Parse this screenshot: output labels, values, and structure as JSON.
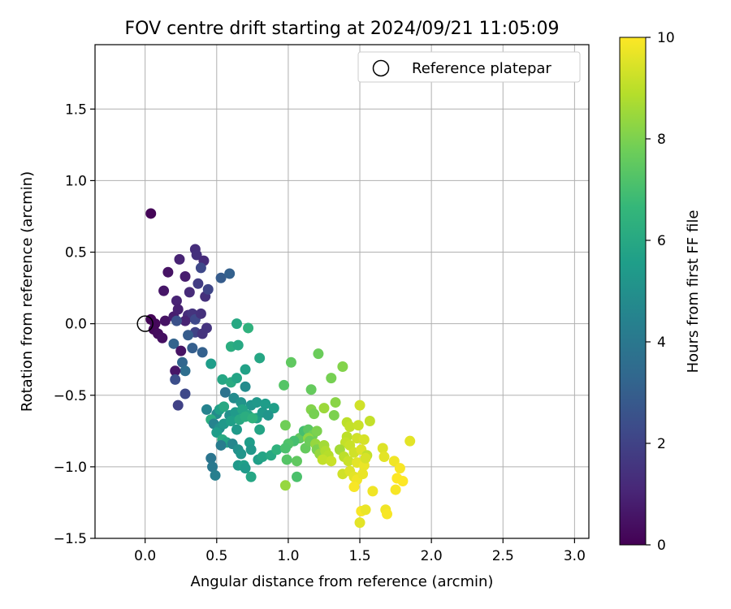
{
  "chart_data": {
    "type": "scatter",
    "title": "FOV centre drift starting at 2024/09/21 11:05:09",
    "xlabel": "Angular distance from reference (arcmin)",
    "ylabel": "Rotation from reference (arcmin)",
    "xlim": [
      -0.35,
      3.1
    ],
    "ylim": [
      -1.5,
      1.95
    ],
    "xticks": [
      0.0,
      0.5,
      1.0,
      1.5,
      2.0,
      2.5,
      3.0
    ],
    "xtick_labels": [
      "0.0",
      "0.5",
      "1.0",
      "1.5",
      "2.0",
      "2.5",
      "3.0"
    ],
    "yticks": [
      -1.5,
      -1.0,
      -0.5,
      0.0,
      0.5,
      1.0,
      1.5
    ],
    "ytick_labels": [
      "−1.5",
      "−1.0",
      "−0.5",
      "0.0",
      "0.5",
      "1.0",
      "1.5"
    ],
    "grid": true,
    "legend": {
      "position": "top-right",
      "label": "Reference platepar"
    },
    "reference_point": {
      "x": 0.0,
      "y": 0.0,
      "marker": "open-circle"
    },
    "colorbar": {
      "label": "Hours from first FF file",
      "colormap": "viridis",
      "range": [
        0,
        10
      ],
      "ticks": [
        0,
        2,
        4,
        6,
        8,
        10
      ],
      "tick_labels": [
        "0",
        "2",
        "4",
        "6",
        "8",
        "10"
      ],
      "colors": [
        "#440154",
        "#482878",
        "#3e4989",
        "#31688e",
        "#26828e",
        "#1f9e89",
        "#35b779",
        "#6ece58",
        "#b5de2b",
        "#fde725"
      ]
    },
    "points": [
      {
        "x": 0.04,
        "y": 0.77,
        "t": 0.1
      },
      {
        "x": 0.04,
        "y": 0.03,
        "t": 0.1
      },
      {
        "x": 0.06,
        "y": -0.04,
        "t": 0.2
      },
      {
        "x": 0.09,
        "y": -0.07,
        "t": 0.3
      },
      {
        "x": 0.12,
        "y": -0.1,
        "t": 0.4
      },
      {
        "x": 0.07,
        "y": 0.0,
        "t": 0.2
      },
      {
        "x": 0.14,
        "y": 0.02,
        "t": 0.5
      },
      {
        "x": 0.16,
        "y": 0.36,
        "t": 0.5
      },
      {
        "x": 0.13,
        "y": 0.23,
        "t": 0.6
      },
      {
        "x": 0.2,
        "y": 0.05,
        "t": 0.8
      },
      {
        "x": 0.22,
        "y": 0.16,
        "t": 1.0
      },
      {
        "x": 0.23,
        "y": 0.1,
        "t": 0.9
      },
      {
        "x": 0.24,
        "y": 0.45,
        "t": 1.0
      },
      {
        "x": 0.28,
        "y": 0.33,
        "t": 0.8
      },
      {
        "x": 0.31,
        "y": 0.22,
        "t": 1.2
      },
      {
        "x": 0.3,
        "y": 0.06,
        "t": 1.3
      },
      {
        "x": 0.28,
        "y": 0.02,
        "t": 1.0
      },
      {
        "x": 0.35,
        "y": 0.52,
        "t": 1.3
      },
      {
        "x": 0.36,
        "y": 0.48,
        "t": 1.4
      },
      {
        "x": 0.41,
        "y": 0.44,
        "t": 1.2
      },
      {
        "x": 0.39,
        "y": 0.39,
        "t": 2.2
      },
      {
        "x": 0.37,
        "y": 0.28,
        "t": 1.8
      },
      {
        "x": 0.42,
        "y": 0.19,
        "t": 1.4
      },
      {
        "x": 0.44,
        "y": 0.24,
        "t": 2.1
      },
      {
        "x": 0.33,
        "y": 0.07,
        "t": 1.5
      },
      {
        "x": 0.35,
        "y": 0.03,
        "t": 2.2
      },
      {
        "x": 0.39,
        "y": 0.07,
        "t": 1.4
      },
      {
        "x": 0.43,
        "y": -0.03,
        "t": 1.5
      },
      {
        "x": 0.35,
        "y": -0.06,
        "t": 2.0
      },
      {
        "x": 0.4,
        "y": -0.07,
        "t": 1.5
      },
      {
        "x": 0.3,
        "y": -0.08,
        "t": 2.9
      },
      {
        "x": 0.2,
        "y": -0.14,
        "t": 3.2
      },
      {
        "x": 0.25,
        "y": -0.19,
        "t": 0.5
      },
      {
        "x": 0.22,
        "y": 0.02,
        "t": 2.5
      },
      {
        "x": 0.33,
        "y": -0.17,
        "t": 3.0
      },
      {
        "x": 0.4,
        "y": -0.2,
        "t": 3.1
      },
      {
        "x": 0.26,
        "y": -0.27,
        "t": 3.3
      },
      {
        "x": 0.28,
        "y": -0.33,
        "t": 3.6
      },
      {
        "x": 0.21,
        "y": -0.33,
        "t": 0.6
      },
      {
        "x": 0.21,
        "y": -0.39,
        "t": 2.4
      },
      {
        "x": 0.28,
        "y": -0.49,
        "t": 2.2
      },
      {
        "x": 0.23,
        "y": -0.57,
        "t": 2.0
      },
      {
        "x": 0.53,
        "y": 0.32,
        "t": 2.9
      },
      {
        "x": 0.59,
        "y": 0.35,
        "t": 3.1
      },
      {
        "x": 0.46,
        "y": -0.28,
        "t": 5.5
      },
      {
        "x": 0.64,
        "y": 0.0,
        "t": 6.0
      },
      {
        "x": 0.72,
        "y": -0.03,
        "t": 6.4
      },
      {
        "x": 0.6,
        "y": -0.16,
        "t": 6.2
      },
      {
        "x": 0.65,
        "y": -0.15,
        "t": 6.0
      },
      {
        "x": 0.8,
        "y": -0.24,
        "t": 5.9
      },
      {
        "x": 0.7,
        "y": -0.32,
        "t": 5.7
      },
      {
        "x": 0.54,
        "y": -0.39,
        "t": 5.9
      },
      {
        "x": 0.6,
        "y": -0.41,
        "t": 6.1
      },
      {
        "x": 0.64,
        "y": -0.38,
        "t": 5.8
      },
      {
        "x": 0.56,
        "y": -0.48,
        "t": 3.8
      },
      {
        "x": 0.62,
        "y": -0.52,
        "t": 4.8
      },
      {
        "x": 0.7,
        "y": -0.44,
        "t": 4.8
      },
      {
        "x": 0.67,
        "y": -0.55,
        "t": 5.1
      },
      {
        "x": 0.74,
        "y": -0.57,
        "t": 5.2
      },
      {
        "x": 0.78,
        "y": -0.55,
        "t": 5.3
      },
      {
        "x": 0.84,
        "y": -0.56,
        "t": 5.5
      },
      {
        "x": 0.9,
        "y": -0.59,
        "t": 5.6
      },
      {
        "x": 0.43,
        "y": -0.6,
        "t": 4.5
      },
      {
        "x": 0.5,
        "y": -0.63,
        "t": 4.8
      },
      {
        "x": 0.52,
        "y": -0.6,
        "t": 5.6
      },
      {
        "x": 0.55,
        "y": -0.58,
        "t": 6.0
      },
      {
        "x": 0.59,
        "y": -0.64,
        "t": 5.0
      },
      {
        "x": 0.63,
        "y": -0.62,
        "t": 5.4
      },
      {
        "x": 0.68,
        "y": -0.6,
        "t": 5.8
      },
      {
        "x": 0.72,
        "y": -0.64,
        "t": 5.9
      },
      {
        "x": 0.78,
        "y": -0.66,
        "t": 5.7
      },
      {
        "x": 0.82,
        "y": -0.62,
        "t": 5.4
      },
      {
        "x": 0.86,
        "y": -0.64,
        "t": 5.2
      },
      {
        "x": 0.46,
        "y": -0.67,
        "t": 6.2
      },
      {
        "x": 0.48,
        "y": -0.7,
        "t": 4.5
      },
      {
        "x": 0.52,
        "y": -0.73,
        "t": 5.0
      },
      {
        "x": 0.55,
        "y": -0.7,
        "t": 5.3
      },
      {
        "x": 0.6,
        "y": -0.68,
        "t": 5.6
      },
      {
        "x": 0.66,
        "y": -0.67,
        "t": 6.0
      },
      {
        "x": 0.7,
        "y": -0.65,
        "t": 6.2
      },
      {
        "x": 0.75,
        "y": -0.66,
        "t": 6.4
      },
      {
        "x": 0.8,
        "y": -0.74,
        "t": 5.8
      },
      {
        "x": 0.64,
        "y": -0.74,
        "t": 5.4
      },
      {
        "x": 0.5,
        "y": -0.76,
        "t": 5.5
      },
      {
        "x": 0.54,
        "y": -0.81,
        "t": 6.1
      },
      {
        "x": 0.57,
        "y": -0.83,
        "t": 5.8
      },
      {
        "x": 0.53,
        "y": -0.85,
        "t": 4.2
      },
      {
        "x": 0.61,
        "y": -0.84,
        "t": 4.6
      },
      {
        "x": 0.65,
        "y": -0.88,
        "t": 5.0
      },
      {
        "x": 0.67,
        "y": -0.91,
        "t": 5.2
      },
      {
        "x": 0.73,
        "y": -0.83,
        "t": 5.5
      },
      {
        "x": 0.74,
        "y": -0.88,
        "t": 5.3
      },
      {
        "x": 0.79,
        "y": -0.95,
        "t": 5.6
      },
      {
        "x": 0.82,
        "y": -0.93,
        "t": 5.8
      },
      {
        "x": 0.46,
        "y": -0.94,
        "t": 3.9
      },
      {
        "x": 0.47,
        "y": -1.0,
        "t": 4.0
      },
      {
        "x": 0.49,
        "y": -1.06,
        "t": 4.3
      },
      {
        "x": 0.65,
        "y": -0.99,
        "t": 5.3
      },
      {
        "x": 0.69,
        "y": -0.99,
        "t": 5.6
      },
      {
        "x": 0.7,
        "y": -1.01,
        "t": 5.4
      },
      {
        "x": 0.74,
        "y": -1.07,
        "t": 5.9
      },
      {
        "x": 0.88,
        "y": -0.92,
        "t": 6.0
      },
      {
        "x": 0.92,
        "y": -0.88,
        "t": 6.4
      },
      {
        "x": 0.97,
        "y": -0.43,
        "t": 7.3
      },
      {
        "x": 1.02,
        "y": -0.27,
        "t": 7.5
      },
      {
        "x": 1.21,
        "y": -0.21,
        "t": 7.7
      },
      {
        "x": 1.3,
        "y": -0.38,
        "t": 7.9
      },
      {
        "x": 1.38,
        "y": -0.3,
        "t": 8.1
      },
      {
        "x": 1.16,
        "y": -0.46,
        "t": 7.6
      },
      {
        "x": 1.33,
        "y": -0.55,
        "t": 8.2
      },
      {
        "x": 1.16,
        "y": -0.6,
        "t": 8.1
      },
      {
        "x": 1.18,
        "y": -0.63,
        "t": 7.9
      },
      {
        "x": 1.25,
        "y": -0.59,
        "t": 8.5
      },
      {
        "x": 1.32,
        "y": -0.64,
        "t": 8.0
      },
      {
        "x": 0.98,
        "y": -0.71,
        "t": 7.8
      },
      {
        "x": 1.08,
        "y": -0.8,
        "t": 7.5
      },
      {
        "x": 1.11,
        "y": -0.75,
        "t": 7.0
      },
      {
        "x": 1.14,
        "y": -0.74,
        "t": 7.4
      },
      {
        "x": 1.17,
        "y": -0.78,
        "t": 7.8
      },
      {
        "x": 1.2,
        "y": -0.75,
        "t": 8.0
      },
      {
        "x": 1.14,
        "y": -0.8,
        "t": 8.3
      },
      {
        "x": 1.04,
        "y": -0.82,
        "t": 7.0
      },
      {
        "x": 1.0,
        "y": -0.84,
        "t": 7.2
      },
      {
        "x": 0.98,
        "y": -0.87,
        "t": 7.1
      },
      {
        "x": 0.99,
        "y": -0.95,
        "t": 7.3
      },
      {
        "x": 1.06,
        "y": -0.96,
        "t": 7.5
      },
      {
        "x": 1.12,
        "y": -0.87,
        "t": 7.6
      },
      {
        "x": 1.15,
        "y": -0.82,
        "t": 7.7
      },
      {
        "x": 1.19,
        "y": -0.84,
        "t": 8.4
      },
      {
        "x": 1.2,
        "y": -0.88,
        "t": 8.0
      },
      {
        "x": 1.22,
        "y": -0.91,
        "t": 8.4
      },
      {
        "x": 1.25,
        "y": -0.85,
        "t": 8.6
      },
      {
        "x": 1.26,
        "y": -0.89,
        "t": 8.8
      },
      {
        "x": 1.28,
        "y": -0.92,
        "t": 8.9
      },
      {
        "x": 1.24,
        "y": -0.95,
        "t": 9.1
      },
      {
        "x": 1.3,
        "y": -0.96,
        "t": 9.2
      },
      {
        "x": 1.06,
        "y": -1.07,
        "t": 7.1
      },
      {
        "x": 0.98,
        "y": -1.13,
        "t": 8.4
      },
      {
        "x": 1.41,
        "y": -0.69,
        "t": 9.0
      },
      {
        "x": 1.43,
        "y": -0.72,
        "t": 9.1
      },
      {
        "x": 1.49,
        "y": -0.71,
        "t": 9.2
      },
      {
        "x": 1.5,
        "y": -0.57,
        "t": 9.3
      },
      {
        "x": 1.57,
        "y": -0.68,
        "t": 9.1
      },
      {
        "x": 1.41,
        "y": -0.79,
        "t": 9.0
      },
      {
        "x": 1.4,
        "y": -0.83,
        "t": 9.1
      },
      {
        "x": 1.43,
        "y": -0.85,
        "t": 9.2
      },
      {
        "x": 1.48,
        "y": -0.8,
        "t": 9.3
      },
      {
        "x": 1.53,
        "y": -0.81,
        "t": 9.4
      },
      {
        "x": 1.36,
        "y": -0.88,
        "t": 8.6
      },
      {
        "x": 1.39,
        "y": -0.93,
        "t": 9.0
      },
      {
        "x": 1.42,
        "y": -0.96,
        "t": 9.2
      },
      {
        "x": 1.46,
        "y": -0.9,
        "t": 9.3
      },
      {
        "x": 1.51,
        "y": -0.88,
        "t": 9.5
      },
      {
        "x": 1.55,
        "y": -0.92,
        "t": 9.1
      },
      {
        "x": 1.48,
        "y": -0.97,
        "t": 9.6
      },
      {
        "x": 1.53,
        "y": -0.99,
        "t": 9.7
      },
      {
        "x": 1.54,
        "y": -0.94,
        "t": 9.4
      },
      {
        "x": 1.38,
        "y": -1.05,
        "t": 9.3
      },
      {
        "x": 1.43,
        "y": -1.03,
        "t": 9.5
      },
      {
        "x": 1.46,
        "y": -1.07,
        "t": 9.6
      },
      {
        "x": 1.48,
        "y": -1.09,
        "t": 9.8
      },
      {
        "x": 1.52,
        "y": -1.05,
        "t": 9.7
      },
      {
        "x": 1.46,
        "y": -1.14,
        "t": 9.9
      },
      {
        "x": 1.59,
        "y": -1.17,
        "t": 9.8
      },
      {
        "x": 1.51,
        "y": -1.31,
        "t": 9.9
      },
      {
        "x": 1.54,
        "y": -1.3,
        "t": 9.7
      },
      {
        "x": 1.5,
        "y": -1.39,
        "t": 9.6
      },
      {
        "x": 1.66,
        "y": -0.87,
        "t": 9.5
      },
      {
        "x": 1.67,
        "y": -0.93,
        "t": 9.6
      },
      {
        "x": 1.74,
        "y": -0.96,
        "t": 9.8
      },
      {
        "x": 1.78,
        "y": -1.01,
        "t": 9.9
      },
      {
        "x": 1.76,
        "y": -1.08,
        "t": 10.0
      },
      {
        "x": 1.8,
        "y": -1.1,
        "t": 10.0
      },
      {
        "x": 1.75,
        "y": -1.16,
        "t": 9.9
      },
      {
        "x": 1.68,
        "y": -1.3,
        "t": 9.8
      },
      {
        "x": 1.69,
        "y": -1.33,
        "t": 9.9
      },
      {
        "x": 1.85,
        "y": -0.82,
        "t": 9.6
      }
    ]
  }
}
